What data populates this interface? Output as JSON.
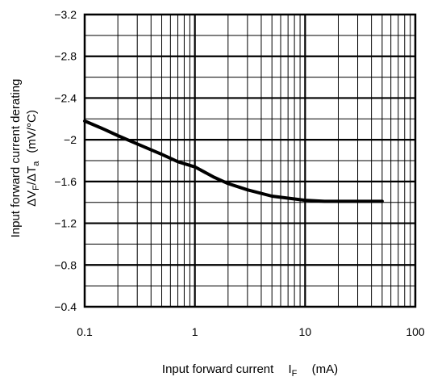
{
  "chart_data": {
    "type": "line",
    "title": "",
    "xscale": "log",
    "xlim": [
      0.1,
      100
    ],
    "ylim": [
      -3.2,
      -0.4
    ],
    "x_ticks": [
      0.1,
      1,
      10,
      100
    ],
    "x_tick_labels": [
      "0.1",
      "1",
      "10",
      "100"
    ],
    "y_ticks": [
      -3.2,
      -2.8,
      -2.4,
      -2.0,
      -1.6,
      -1.2,
      -0.8,
      -0.4
    ],
    "y_tick_labels": [
      "−3.2",
      "−2.8",
      "−2.4",
      "−2",
      "−1.6",
      "−1.2",
      "−0.8",
      "−0.4"
    ],
    "y_minor_step": 0.2,
    "grid": true,
    "xlabel": {
      "main": "Input forward current",
      "symbol": "I",
      "symbol_sub": "F",
      "unit": "(mA)"
    },
    "ylabel": {
      "line1": "Input forward current derating",
      "line2_a": "ΔV",
      "line2_a_sub": "F",
      "line2_b": "/ΔT",
      "line2_b_sub": "a",
      "line2_unit": "(mV/°C)"
    },
    "series": [
      {
        "x": [
          0.1,
          0.15,
          0.2,
          0.3,
          0.5,
          0.7,
          1,
          1.5,
          2,
          3,
          5,
          7,
          10,
          15,
          20,
          30,
          50
        ],
        "y": [
          -2.18,
          -2.1,
          -2.04,
          -1.96,
          -1.86,
          -1.79,
          -1.74,
          -1.64,
          -1.58,
          -1.52,
          -1.46,
          -1.44,
          -1.42,
          -1.41,
          -1.41,
          -1.41,
          -1.41
        ]
      }
    ]
  }
}
